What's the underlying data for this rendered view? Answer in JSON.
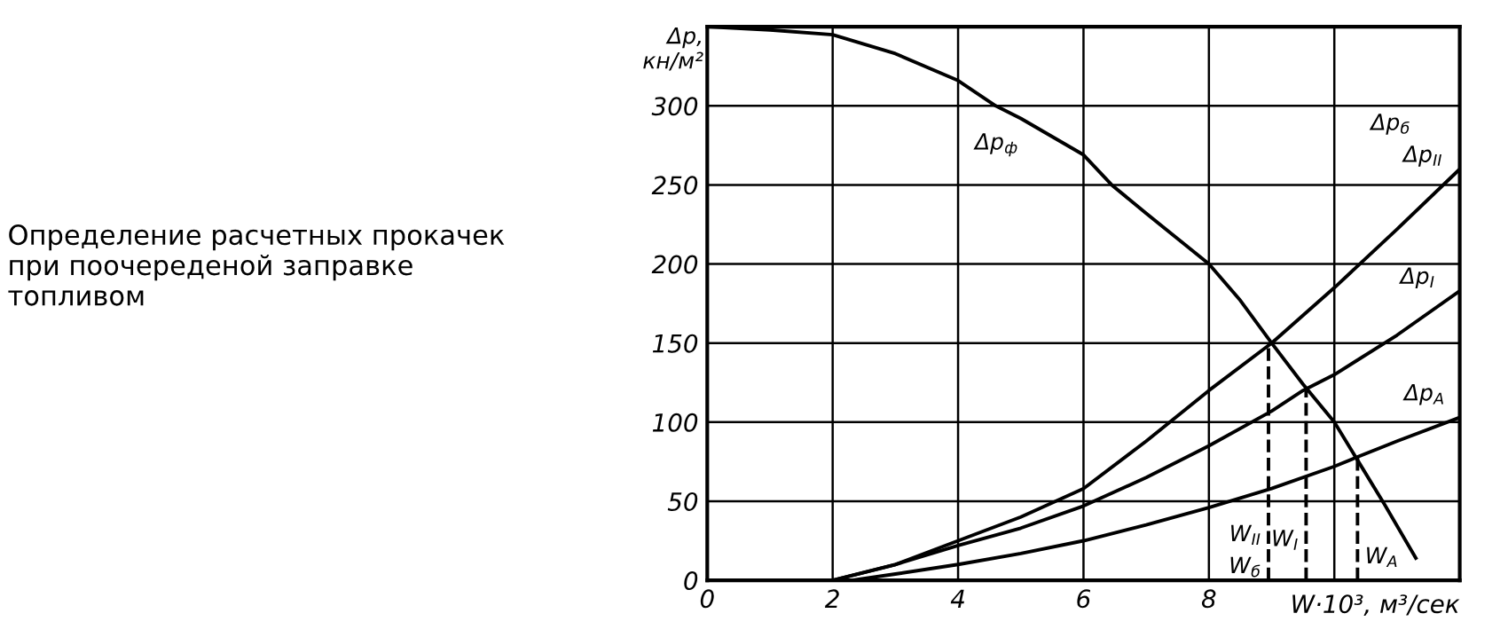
{
  "chart_data": {
    "type": "line",
    "title": "Определение расчетных прокачек\nпри поочереденой заправке\nтопливом",
    "xlabel": "W·10³, м³/сек",
    "ylabel": "Δp,\nкн/м²",
    "xlim": [
      0,
      12
    ],
    "ylim": [
      0,
      350
    ],
    "xticks": [
      0,
      2,
      4,
      6,
      8,
      {
        "value": 10,
        "label": null
      }
    ],
    "yticks": [
      0,
      50,
      100,
      150,
      200,
      250,
      300,
      {
        "value": 350,
        "label": null
      }
    ],
    "grid": true,
    "legend": false,
    "marker": "none",
    "series": [
      {
        "name": "Δp$_{ф}$",
        "color": "#000000",
        "x": [
          0,
          1,
          2,
          3,
          4,
          4.6,
          5,
          6,
          6.45,
          7,
          7.5,
          8,
          8.5,
          9,
          9.5,
          10,
          10.37,
          10.8,
          11.3
        ],
        "values": [
          350,
          348,
          345,
          333,
          316,
          300,
          292,
          269,
          250,
          232,
          216,
          200,
          177,
          150,
          124,
          100,
          76,
          48,
          14
        ]
      },
      {
        "name": "Δp$_{б}$",
        "color": "#000000",
        "x": [
          2,
          3,
          4,
          5,
          6,
          7,
          8,
          9,
          10,
          11,
          12
        ],
        "values": [
          0,
          10,
          25,
          40,
          58,
          88,
          120,
          150,
          185,
          222,
          260
        ]
      },
      {
        "name": "Δp$_{I}$",
        "color": "#000000",
        "x": [
          2,
          3,
          4,
          5,
          6,
          7,
          8,
          9,
          9.5,
          10,
          11,
          12
        ],
        "values": [
          0,
          10,
          22,
          33,
          47,
          65,
          85,
          107,
          120,
          130,
          155,
          183
        ]
      },
      {
        "name": "Δp$_{A}$",
        "color": "#000000",
        "x": [
          2.3,
          3,
          4,
          5,
          6,
          7,
          8,
          9,
          10,
          10.37,
          11,
          12
        ],
        "values": [
          0,
          4,
          10,
          17,
          25,
          35,
          46,
          58,
          72,
          78,
          88,
          103
        ]
      },
      {
        "name": "W$_{II}$",
        "color": "#000000",
        "line_style": "dashed",
        "x": [
          8.95,
          8.95
        ],
        "values": [
          0,
          150
        ]
      },
      {
        "name": "W$_{I}$",
        "color": "#000000",
        "line_style": "dashed",
        "x": [
          9.55,
          9.55
        ],
        "values": [
          0,
          120
        ]
      },
      {
        "name": "W$_{A}$",
        "color": "#000000",
        "line_style": "dashed",
        "x": [
          10.37,
          10.37
        ],
        "values": [
          0,
          78
        ]
      }
    ],
    "annotations": [
      "Δp$_{II}$",
      "W$_{б}$"
    ]
  }
}
